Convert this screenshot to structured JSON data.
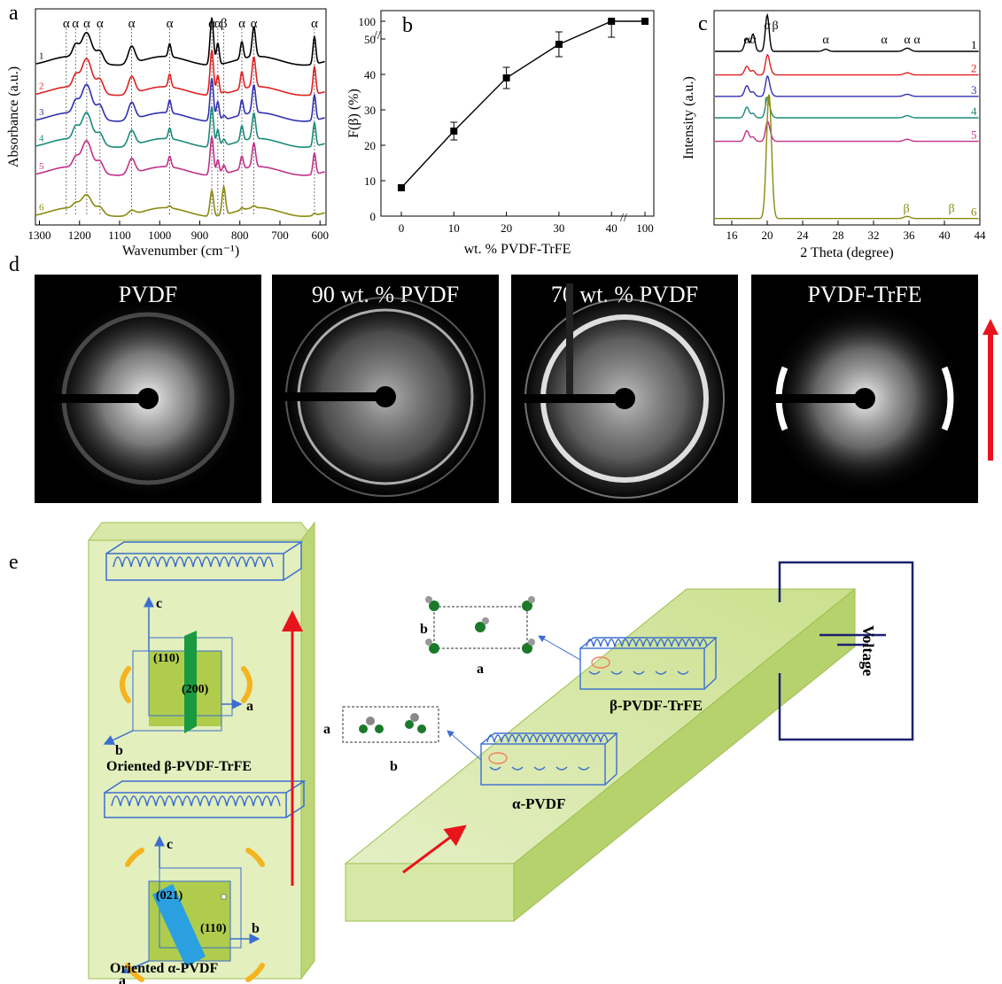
{
  "panel_labels": {
    "a": "a",
    "b": "b",
    "c": "c",
    "d": "d",
    "e": "e"
  },
  "colors": {
    "s1": "#000000",
    "s2": "#e02020",
    "s3": "#3030b0",
    "s4": "#1a8a7a",
    "s5": "#c2308a",
    "s6": "#8a8a10",
    "arrow": "#e8141c",
    "slab": "#c8dc8c",
    "chain": "#3a6ed0",
    "bracket": "#f4b420"
  },
  "chart_data": [
    {
      "type": "line",
      "title": "",
      "xlabel": "Wavenumber (cm⁻¹)",
      "ylabel": "Absorbance (a.u.)",
      "xlim": [
        1310,
        585
      ],
      "x_reversed": true,
      "x_ticks": [
        "1300",
        "1200",
        "1100",
        "1000",
        "900",
        "800",
        "700",
        "600"
      ],
      "series_labels": [
        "1",
        "2",
        "3",
        "4",
        "5",
        "6"
      ],
      "peak_markers": [
        {
          "x": 1233,
          "label": "α"
        },
        {
          "x": 1210,
          "label": "α"
        },
        {
          "x": 1182,
          "label": "α"
        },
        {
          "x": 1149,
          "label": "α"
        },
        {
          "x": 1070,
          "label": "α"
        },
        {
          "x": 975,
          "label": "α"
        },
        {
          "x": 870,
          "label": "α"
        },
        {
          "x": 855,
          "label": "α"
        },
        {
          "x": 840,
          "label": "β"
        },
        {
          "x": 795,
          "label": "α"
        },
        {
          "x": 765,
          "label": "α"
        },
        {
          "x": 614,
          "label": "α"
        }
      ],
      "baselines": [
        0.76,
        0.62,
        0.5,
        0.38,
        0.25,
        0.06
      ],
      "peaks": [
        {
          "x": 1182,
          "w": 18,
          "a": [
            0.12,
            0.14,
            0.14,
            0.13,
            0.13,
            0.07
          ]
        },
        {
          "x": 1210,
          "w": 10,
          "a": [
            0.05,
            0.05,
            0.05,
            0.05,
            0.04,
            0.02
          ]
        },
        {
          "x": 1149,
          "w": 12,
          "a": [
            0.05,
            0.06,
            0.06,
            0.05,
            0.05,
            0.03
          ]
        },
        {
          "x": 1070,
          "w": 12,
          "a": [
            0.08,
            0.08,
            0.08,
            0.07,
            0.07,
            0.02
          ]
        },
        {
          "x": 975,
          "w": 5,
          "a": [
            0.06,
            0.06,
            0.06,
            0.05,
            0.05,
            0.01
          ]
        },
        {
          "x": 870,
          "w": 6,
          "a": [
            0.22,
            0.21,
            0.2,
            0.19,
            0.18,
            0.12
          ]
        },
        {
          "x": 855,
          "w": 5,
          "a": [
            0.1,
            0.09,
            0.09,
            0.08,
            0.07,
            0.0
          ]
        },
        {
          "x": 840,
          "w": 6,
          "a": [
            0.0,
            0.01,
            0.02,
            0.03,
            0.04,
            0.13
          ]
        },
        {
          "x": 795,
          "w": 5,
          "a": [
            0.08,
            0.08,
            0.07,
            0.07,
            0.06,
            0.01
          ]
        },
        {
          "x": 765,
          "w": 6,
          "a": [
            0.14,
            0.14,
            0.13,
            0.12,
            0.11,
            0.01
          ]
        },
        {
          "x": 614,
          "w": 5,
          "a": [
            0.13,
            0.13,
            0.12,
            0.11,
            0.1,
            0.01
          ]
        }
      ]
    },
    {
      "type": "line",
      "title": "",
      "xlabel": "wt. % PVDF-TrFE",
      "ylabel": "F(β) (%)",
      "categories": [
        "0",
        "10",
        "20",
        "30",
        "40",
        "100"
      ],
      "values": [
        8,
        24,
        39,
        48.5,
        55,
        100
      ],
      "errors": [
        0.5,
        2.5,
        3,
        3.5,
        4.5,
        0
      ],
      "ylim": [
        0,
        100
      ],
      "y_axis_break": "55-95",
      "x_axis_break": "40-100",
      "y_ticks": [
        "0",
        "10",
        "20",
        "30",
        "40",
        "50",
        "100"
      ]
    },
    {
      "type": "line",
      "title": "",
      "xlabel": "2 Theta (degree)",
      "ylabel": "Intensity (a.u.)",
      "xlim": [
        14,
        44
      ],
      "x_ticks": [
        "16",
        "20",
        "24",
        "28",
        "32",
        "36",
        "40",
        "44"
      ],
      "series_labels": [
        "1",
        "2",
        "3",
        "4",
        "5",
        "6"
      ],
      "peak_labels_top": [
        {
          "x": 17.7,
          "label": "α"
        },
        {
          "x": 18.4,
          "label": "α"
        },
        {
          "x": 20.0,
          "label": "α"
        },
        {
          "x": 20.9,
          "label": "β"
        },
        {
          "x": 26.6,
          "label": "α"
        },
        {
          "x": 33.2,
          "label": "α"
        },
        {
          "x": 35.8,
          "label": "α"
        },
        {
          "x": 36.9,
          "label": "α"
        }
      ],
      "peak_labels_bottom": [
        {
          "x": 20.0,
          "label": "β"
        },
        {
          "x": 35.7,
          "label": "β"
        },
        {
          "x": 40.8,
          "label": "β"
        }
      ],
      "baselines": [
        0.81,
        0.7,
        0.6,
        0.5,
        0.39,
        0.03
      ],
      "peaks": [
        {
          "x": 17.7,
          "w": 0.35,
          "a": [
            0.06,
            0.04,
            0.05,
            0.05,
            0.05,
            0.0
          ]
        },
        {
          "x": 18.4,
          "w": 0.3,
          "a": [
            0.08,
            0.02,
            0.02,
            0.02,
            0.02,
            0.0
          ]
        },
        {
          "x": 20.0,
          "w": 0.3,
          "a": [
            0.17,
            0.07,
            0.07,
            0.07,
            0.06,
            0.0
          ]
        },
        {
          "x": 20.2,
          "w": 0.4,
          "a": [
            0.0,
            0.03,
            0.03,
            0.03,
            0.04,
            0.58
          ]
        },
        {
          "x": 26.6,
          "w": 0.4,
          "a": [
            0.01,
            0.0,
            0.0,
            0.0,
            0.0,
            0.0
          ]
        },
        {
          "x": 35.8,
          "w": 0.5,
          "a": [
            0.015,
            0.01,
            0.01,
            0.01,
            0.01,
            0.01
          ]
        }
      ]
    }
  ],
  "xrd_panels": [
    {
      "title": "PVDF",
      "style": "ring-diffuse"
    },
    {
      "title": "90 wt. % PVDF",
      "style": "ring-sharp"
    },
    {
      "title": "70 wt. % PVDF",
      "style": "ring-bright"
    },
    {
      "title": "PVDF-TrFE",
      "style": "arcs"
    }
  ],
  "schematic": {
    "left_box": {
      "beta_caption": "Oriented β-PVDF-TrFE",
      "alpha_caption": "Oriented α-PVDF",
      "beta_planes": [
        "(110)",
        "(200)"
      ],
      "alpha_planes": [
        "(021)",
        "(110)"
      ],
      "beta_axes": {
        "c": "c",
        "a": "a",
        "b": "b"
      },
      "alpha_axes": {
        "c": "c",
        "a": "a",
        "b": "b"
      }
    },
    "slab": {
      "beta_label": "β-PVDF-TrFE",
      "alpha_label": "α-PVDF",
      "beta_cell_axes": {
        "b": "b",
        "a": "a"
      },
      "alpha_cell_axes": {
        "a": "a",
        "b": "b"
      },
      "voltage_label": "Voltage"
    }
  }
}
